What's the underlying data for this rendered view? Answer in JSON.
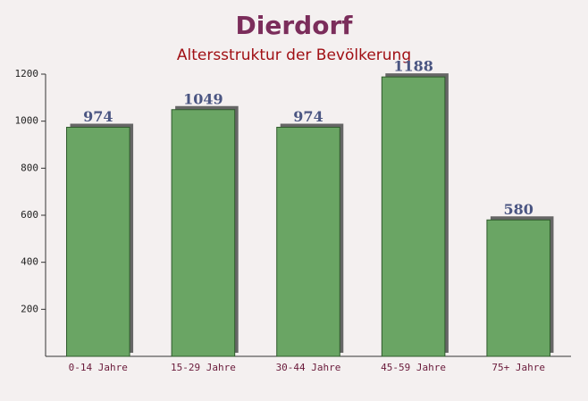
{
  "chart_data": {
    "type": "bar",
    "title": "Dierdorf",
    "subtitle": "Altersstruktur der Bevölkerung",
    "categories": [
      "0-14 Jahre",
      "15-29 Jahre",
      "30-44 Jahre",
      "45-59 Jahre",
      "75+ Jahre"
    ],
    "values": [
      974,
      1049,
      974,
      1188,
      580
    ],
    "color": "#6aa564",
    "ylim": [
      0,
      1200
    ],
    "yticks": [
      200,
      400,
      600,
      800,
      1000,
      1200
    ]
  }
}
